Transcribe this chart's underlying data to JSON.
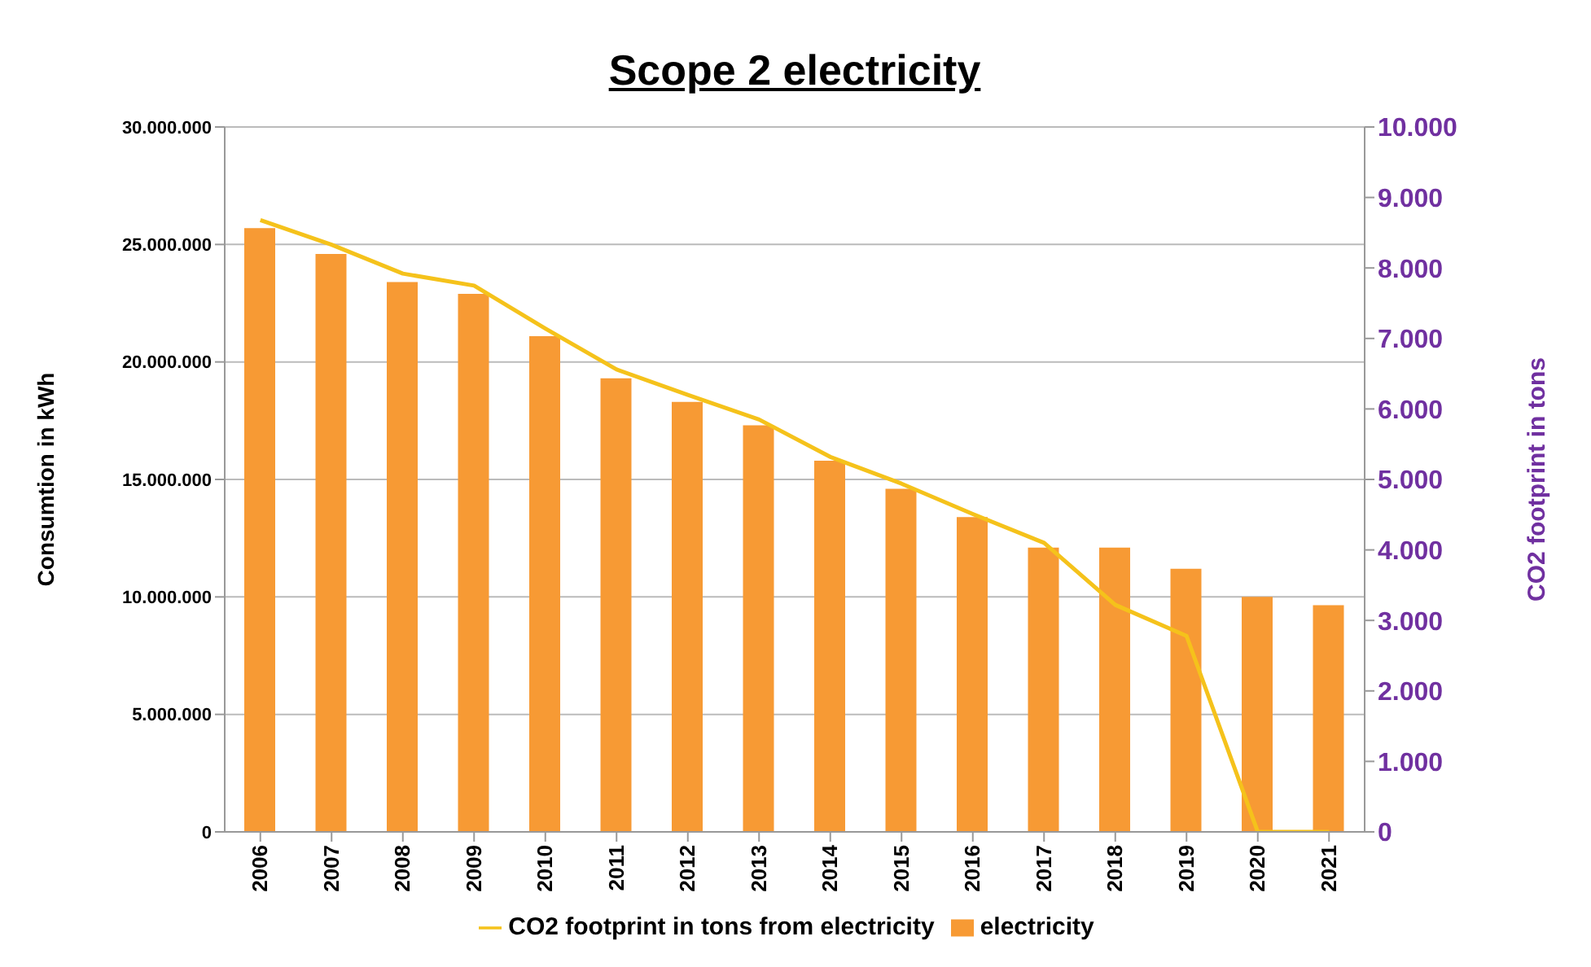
{
  "chart_data": {
    "type": "bar",
    "title": "Scope 2 electricity",
    "ylabel": "Consumtion in kWh",
    "y2label": "CO2 footprint in tons",
    "categories": [
      "2006",
      "2007",
      "2008",
      "2009",
      "2010",
      "2011",
      "2012",
      "2013",
      "2014",
      "2015",
      "2016",
      "2017",
      "2018",
      "2019",
      "2020",
      "2021"
    ],
    "series": [
      {
        "name": "electricity",
        "color": "#f79a34",
        "values": [
          25700000,
          24600000,
          23400000,
          22900000,
          21100000,
          19300000,
          18300000,
          17300000,
          15800000,
          14600000,
          13400000,
          12100000,
          12100000,
          11200000,
          10000000,
          9650000
        ]
      },
      {
        "name": "CO2 footprint in tons from electricity",
        "type": "line",
        "axis": "y2",
        "color": "#f5c21b",
        "values": [
          8680,
          8330,
          7920,
          7750,
          7140,
          6560,
          6200,
          5850,
          5320,
          4940,
          4510,
          4100,
          3220,
          2780,
          0,
          0
        ]
      }
    ],
    "ylim": [
      0,
      30000000
    ],
    "yticks": [
      {
        "value": 0,
        "label": "0"
      },
      {
        "value": 5000000,
        "label": "5.000.000"
      },
      {
        "value": 10000000,
        "label": "10.000.000"
      },
      {
        "value": 15000000,
        "label": "15.000.000"
      },
      {
        "value": 20000000,
        "label": "20.000.000"
      },
      {
        "value": 25000000,
        "label": "25.000.000"
      },
      {
        "value": 30000000,
        "label": "30.000.000"
      }
    ],
    "y2lim": [
      0,
      10000
    ],
    "y2ticks": [
      {
        "value": 0,
        "label": "0"
      },
      {
        "value": 1000,
        "label": "1.000"
      },
      {
        "value": 2000,
        "label": "2.000"
      },
      {
        "value": 3000,
        "label": "3.000"
      },
      {
        "value": 4000,
        "label": "4.000"
      },
      {
        "value": 5000,
        "label": "5.000"
      },
      {
        "value": 6000,
        "label": "6.000"
      },
      {
        "value": 7000,
        "label": "7.000"
      },
      {
        "value": 8000,
        "label": "8.000"
      },
      {
        "value": 9000,
        "label": "9.000"
      },
      {
        "value": 10000,
        "label": "10.000"
      }
    ],
    "grid": "y",
    "legend": "bottom",
    "marker": "none"
  }
}
